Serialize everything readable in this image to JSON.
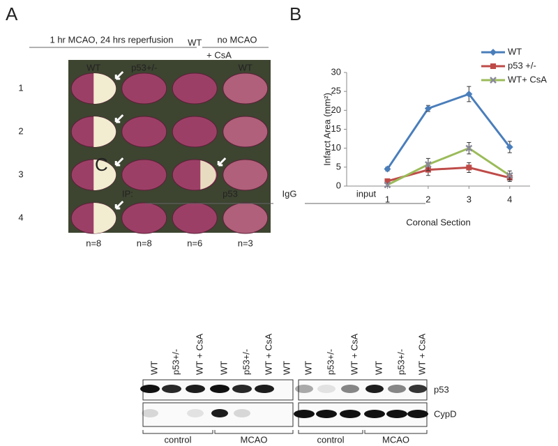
{
  "panel_a": {
    "letter": "A",
    "group_1": "1 hr MCAO, 24 hrs reperfusion",
    "group_2": "no MCAO",
    "columns": [
      "WT",
      "p53+/-",
      "WT",
      "WT"
    ],
    "column_3_sub": "+ CsA",
    "rows": [
      "1",
      "2",
      "3",
      "4"
    ],
    "n": [
      "n=8",
      "n=8",
      "n=6",
      "n=3"
    ]
  },
  "chart_data": {
    "type": "line",
    "letter": "B",
    "y_label": "Infarct Area (mm²)",
    "x_label": "Coronal Section",
    "x": [
      1,
      2,
      3,
      4
    ],
    "xlim": [
      0,
      4.5
    ],
    "xticks": [
      1,
      2,
      3,
      4
    ],
    "ylim": [
      0,
      30
    ],
    "yticks": [
      0,
      5,
      10,
      15,
      20,
      25,
      30
    ],
    "series": [
      {
        "name": "WT",
        "color": "#4a7ebb",
        "marker": "diamond",
        "values": [
          4.5,
          20.5,
          24.3,
          10.3
        ],
        "errors": [
          0.5,
          0.8,
          2.0,
          1.5
        ]
      },
      {
        "name": "p53 +/-",
        "color": "#be4b48",
        "marker": "square",
        "values": [
          1.3,
          4.3,
          4.9,
          2.2
        ],
        "errors": [
          0.6,
          1.5,
          1.3,
          1.0
        ]
      },
      {
        "name": "WT+ CsA",
        "color": "#9bbb59",
        "marker": "x",
        "values": [
          0.3,
          5.7,
          10.0,
          2.8
        ],
        "errors": [
          0.4,
          1.6,
          1.5,
          1.2
        ]
      }
    ]
  },
  "panel_c": {
    "letter": "C",
    "ip": "IP:",
    "ip_p53": "p53",
    "ip_igg": "IgG",
    "input": "input",
    "lanes_left": [
      "WT",
      "p53+/-",
      "WT + CsA",
      "WT",
      "p53+/-",
      "WT + CsA",
      "WT"
    ],
    "lanes_right": [
      "WT",
      "p53+/-",
      "WT + CsA",
      "WT",
      "p53+/-",
      "WT + CsA"
    ],
    "blots": [
      "p53",
      "CypD"
    ],
    "groups": [
      "control",
      "MCAO",
      "control",
      "MCAO"
    ]
  }
}
